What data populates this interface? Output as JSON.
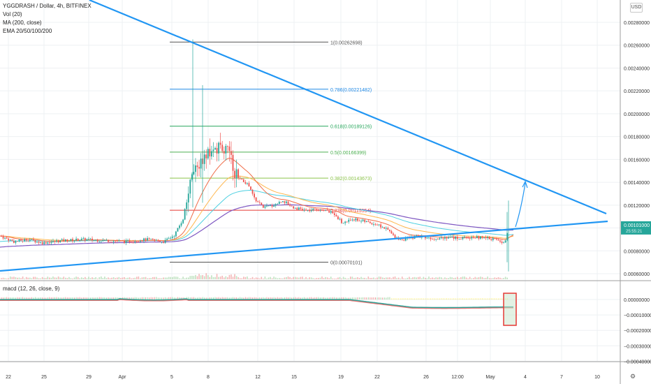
{
  "symbol_line": "YGGDRASH / Dollar, 4h, BITFINEX",
  "indicators": [
    "Vol (20)",
    "MA (200, close)",
    "EMA 20/50/100/200"
  ],
  "macd_label": "macd (12, 26, close, 9)",
  "currency_button": "USD",
  "scale_button": "⚙",
  "colors": {
    "up_candle": "#26a69a",
    "down_candle": "#ef5350",
    "trendline": "#2196f3",
    "ema20": "#ef6c48",
    "ema50": "#ffb74d",
    "ema100": "#4dd0e1",
    "ema200": "#7e57c2",
    "fib_0": "#555555",
    "fib_0236": "#e53935",
    "fib_0382": "#8bc34a",
    "fib_05": "#4caf50",
    "fib_0618": "#26a65b",
    "fib_0786": "#1e88e5",
    "fib_1": "#555555",
    "macd_line": "#26a69a",
    "signal_line": "#e57373",
    "annotation_box": "#e53935"
  },
  "chart_data": {
    "type": "candlestick",
    "price_axis": {
      "ticks": [
        0.0006,
        0.0008,
        0.001,
        0.0012,
        0.0014,
        0.0016,
        0.0018,
        0.002,
        0.0022,
        0.0024,
        0.0026,
        0.0028
      ],
      "tick_labels": [
        "0.00060000",
        "0.00080000",
        "0.00100000",
        "0.00120000",
        "0.00140000",
        "0.00160000",
        "0.00180000",
        "0.00200000",
        "0.00220000",
        "0.00240000",
        "0.00260000",
        "0.00280000"
      ],
      "ylim": [
        0.00054,
        0.00292
      ]
    },
    "last_price_label": "0.00101000",
    "last_price_sublabel": "25:55:21",
    "last_price": 0.00101,
    "macd_axis": {
      "ticks": [
        0.0,
        -0.0001,
        -0.0002,
        -0.0003,
        -0.0004
      ],
      "tick_labels": [
        "0.00000000",
        "−0.00010000",
        "−0.00020000",
        "−0.00030000",
        "−0.00040000"
      ],
      "ylim": [
        -0.000465,
        0.00011
      ]
    },
    "x_axis": {
      "labels": [
        "22",
        "25",
        "29",
        "Apr",
        "5",
        "8",
        "12",
        "15",
        "19",
        "22",
        "26",
        "12:00",
        "May",
        "4",
        "7",
        "10"
      ],
      "positions": [
        12,
        63,
        127,
        175,
        246,
        298,
        369,
        421,
        488,
        540,
        610,
        655,
        702,
        752,
        804,
        855
      ]
    },
    "fibonacci": [
      {
        "level": "1",
        "price": 0.00262698,
        "label": "1(0.00262698)"
      },
      {
        "level": "0.786",
        "price": 0.00221482,
        "label": "0.786(0.00221482)"
      },
      {
        "level": "0.618",
        "price": 0.00189126,
        "label": "0.618(0.00189126)"
      },
      {
        "level": "0.5",
        "price": 0.00166399,
        "label": "0.5(0.00166399)"
      },
      {
        "level": "0.382",
        "price": 0.00143673,
        "label": "0.382(0.00143673)"
      },
      {
        "level": "0.236",
        "price": 0.00115554,
        "label": "0.236(0.00115554)"
      },
      {
        "level": "0",
        "price": 0.00070101,
        "label": "0(0.00070101)"
      }
    ],
    "series": [
      {
        "name": "EMA 20"
      },
      {
        "name": "EMA 50"
      },
      {
        "name": "EMA 100"
      },
      {
        "name": "EMA 200"
      },
      {
        "name": "MA (200, close)"
      }
    ],
    "grid": true
  }
}
